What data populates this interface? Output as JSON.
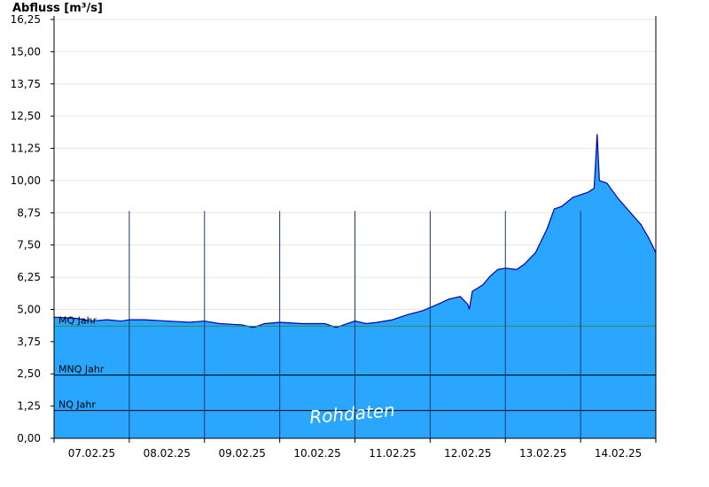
{
  "chart_data": {
    "type": "area",
    "title": "Abfluss [m³/s]",
    "ylim": [
      0,
      16.25
    ],
    "ytick_labels": [
      "0,00",
      "1,25",
      "2,50",
      "3,75",
      "5,00",
      "6,25",
      "7,50",
      "8,75",
      "10,00",
      "11,25",
      "12,50",
      "13,75",
      "15,00",
      "16,25"
    ],
    "xtick_labels": [
      "07.02.25",
      "08.02.25",
      "09.02.25",
      "10.02.25",
      "11.02.25",
      "12.02.25",
      "13.02.25",
      "14.02.25"
    ],
    "x_range_days": [
      0,
      8
    ],
    "grid": true,
    "reference_lines": [
      {
        "name": "MQ Jahr",
        "value": 4.35,
        "color": "#2e8b57"
      },
      {
        "name": "MNQ Jahr",
        "value": 2.45,
        "color": "#000000"
      },
      {
        "name": "NQ Jahr",
        "value": 1.08,
        "color": "#000000"
      }
    ],
    "series": [
      {
        "fill": "#2aa6ff",
        "line": "#0000aa",
        "x": [
          0,
          0.3,
          0.5,
          0.7,
          0.9,
          1.0,
          1.2,
          1.5,
          1.8,
          2.0,
          2.2,
          2.5,
          2.65,
          2.8,
          3.0,
          3.3,
          3.6,
          3.75,
          3.9,
          4.0,
          4.15,
          4.3,
          4.5,
          4.7,
          4.9,
          5.1,
          5.25,
          5.4,
          5.5,
          5.52,
          5.56,
          5.7,
          5.8,
          5.9,
          6.0,
          6.15,
          6.25,
          6.4,
          6.55,
          6.65,
          6.75,
          6.9,
          7.0,
          7.1,
          7.18,
          7.22,
          7.25,
          7.35,
          7.5,
          7.65,
          7.8,
          7.9,
          8.0
        ],
        "values": [
          4.7,
          4.65,
          4.55,
          4.6,
          4.55,
          4.6,
          4.6,
          4.55,
          4.5,
          4.55,
          4.45,
          4.4,
          4.3,
          4.45,
          4.5,
          4.45,
          4.45,
          4.3,
          4.45,
          4.55,
          4.45,
          4.5,
          4.6,
          4.8,
          4.95,
          5.2,
          5.4,
          5.5,
          5.2,
          5.0,
          5.7,
          5.95,
          6.3,
          6.55,
          6.6,
          6.55,
          6.75,
          7.2,
          8.1,
          8.9,
          9.0,
          9.35,
          9.45,
          9.55,
          9.7,
          11.8,
          10.0,
          9.9,
          9.3,
          8.8,
          8.3,
          7.8,
          7.2
        ]
      }
    ],
    "watermark": "Rohdaten"
  }
}
